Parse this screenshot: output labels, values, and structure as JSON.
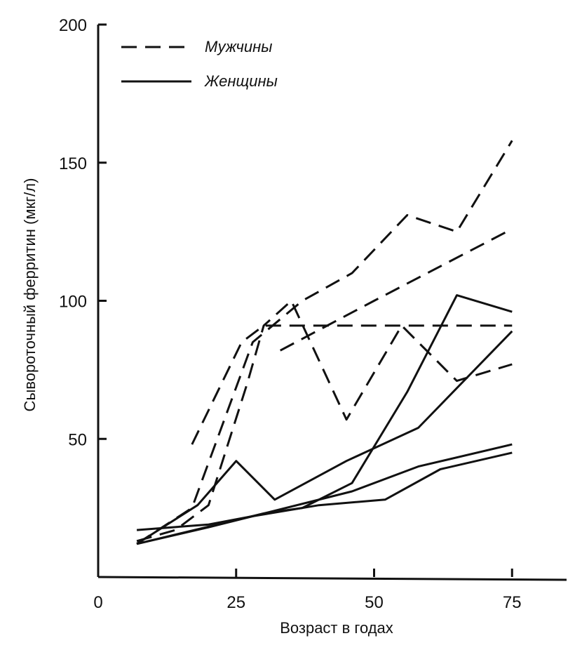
{
  "chart_data": {
    "type": "line",
    "xlabel": "Возраст в годах",
    "ylabel": "Сывороточный ферритин (мкг/л)",
    "xlim": [
      0,
      85
    ],
    "ylim": [
      0,
      200
    ],
    "x_ticks": [
      "0",
      "25",
      "50",
      "75"
    ],
    "y_ticks": [
      "50",
      "100",
      "150",
      "200"
    ],
    "legend": {
      "placement": "top-left",
      "entries": [
        {
          "label": "Мужчины",
          "style": "dashed"
        },
        {
          "label": "Женщины",
          "style": "solid"
        }
      ]
    },
    "series": [
      {
        "group": "Мужчины",
        "style": "dashed",
        "points": [
          [
            7,
            13
          ],
          [
            14,
            17
          ],
          [
            20,
            26
          ],
          [
            27,
            70
          ],
          [
            30,
            91
          ],
          [
            35,
            100
          ],
          [
            45,
            57
          ],
          [
            55,
            91
          ],
          [
            65,
            71
          ],
          [
            75,
            77
          ]
        ]
      },
      {
        "group": "Мужчины",
        "style": "dashed",
        "points": [
          [
            7,
            12
          ],
          [
            17,
            25
          ],
          [
            28,
            85
          ],
          [
            37,
            100
          ],
          [
            46,
            110
          ],
          [
            56,
            131
          ],
          [
            65,
            125
          ],
          [
            75,
            158
          ]
        ]
      },
      {
        "group": "Мужчины",
        "style": "dashed",
        "points": [
          [
            17,
            48
          ],
          [
            26,
            85
          ],
          [
            30,
            91
          ],
          [
            75,
            91
          ]
        ]
      },
      {
        "group": "Мужчины",
        "style": "dashed",
        "points": [
          [
            33,
            82
          ],
          [
            50,
            100
          ],
          [
            75,
            126
          ]
        ]
      },
      {
        "group": "Женщины",
        "style": "solid",
        "points": [
          [
            7,
            17
          ],
          [
            20,
            19
          ],
          [
            28,
            22
          ],
          [
            40,
            26
          ],
          [
            52,
            28
          ],
          [
            62,
            39
          ],
          [
            75,
            45
          ]
        ]
      },
      {
        "group": "Женщины",
        "style": "solid",
        "points": [
          [
            7,
            12
          ],
          [
            20,
            18
          ],
          [
            30,
            23
          ],
          [
            37,
            25
          ],
          [
            46,
            34
          ],
          [
            56,
            67
          ],
          [
            65,
            102
          ],
          [
            75,
            96
          ]
        ]
      },
      {
        "group": "Женщины",
        "style": "solid",
        "points": [
          [
            7,
            12
          ],
          [
            18,
            26
          ],
          [
            25,
            42
          ],
          [
            32,
            28
          ],
          [
            45,
            42
          ],
          [
            58,
            54
          ],
          [
            75,
            89
          ]
        ]
      },
      {
        "group": "Женщины",
        "style": "solid",
        "points": [
          [
            7,
            12
          ],
          [
            30,
            23
          ],
          [
            46,
            31
          ],
          [
            58,
            40
          ],
          [
            75,
            48
          ]
        ]
      }
    ]
  }
}
